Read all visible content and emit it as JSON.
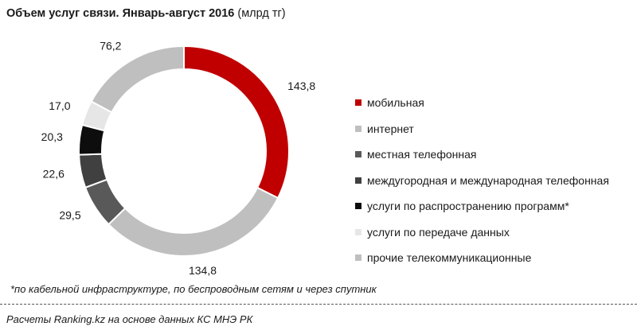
{
  "chart_data": {
    "type": "pie",
    "title": "Объем услуг связи. Январь-август  2016",
    "unit": "(млрд тг)",
    "categories": [
      "мобильная",
      "интернет",
      "местная телефонная",
      "междугородная и международная телефонная",
      "услуги по распространению программ*",
      "услуги по передаче данных",
      "прочие телекоммуникационные"
    ],
    "values": [
      143.8,
      134.8,
      29.5,
      22.6,
      20.3,
      17.0,
      76.2
    ],
    "value_labels": [
      "143,8",
      "134,8",
      "29,5",
      "22,6",
      "20,3",
      "17,0",
      "76,2"
    ],
    "colors": [
      "#c00000",
      "#bfbfbf",
      "#595959",
      "#404040",
      "#0d0d0d",
      "#e6e6e6",
      "#bfbfbf"
    ],
    "legend_position": "right"
  },
  "footnote": "*по кабельной инфраструктуре, по беспроводным  сетям и через спутник",
  "source": "Расчеты Ranking.kz на основе данных КС МНЭ РК"
}
